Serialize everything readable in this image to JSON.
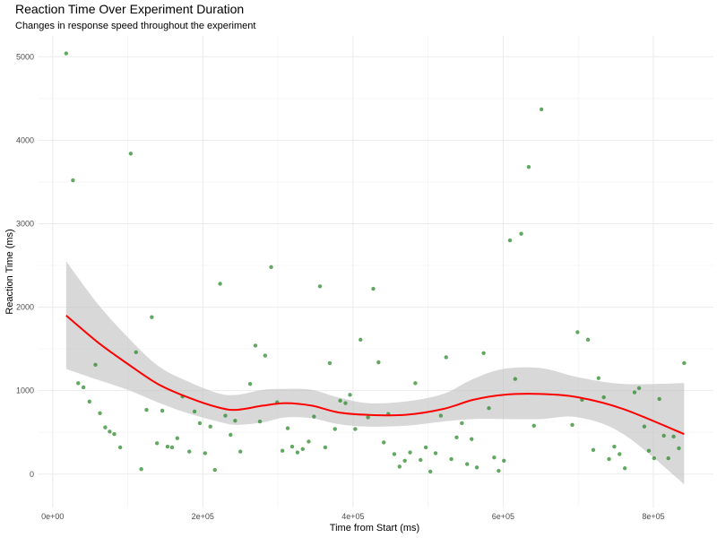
{
  "chart_data": {
    "type": "scatter",
    "title": "Reaction Time Over Experiment Duration",
    "subtitle": "Changes in response speed throughout the experiment",
    "xlabel": "Time from Start (ms)",
    "ylabel": "Reaction Time (ms)",
    "xlim": [
      -20000,
      880000
    ],
    "ylim": [
      -400,
      5250
    ],
    "x_ticks": [
      0,
      200000,
      400000,
      600000,
      800000
    ],
    "x_tick_labels": [
      "0e+00",
      "2e+05",
      "4e+05",
      "6e+05",
      "8e+05"
    ],
    "y_ticks": [
      0,
      1000,
      2000,
      3000,
      4000,
      5000
    ],
    "y_tick_labels": [
      "0",
      "1000",
      "2000",
      "3000",
      "4000",
      "5000"
    ],
    "grid": true,
    "legend": "none",
    "colors": {
      "points": "#2e8b2e",
      "smooth_line": "#ff0000",
      "confidence_band": "#bebebe"
    },
    "points": [
      {
        "x": 18000,
        "y": 5040
      },
      {
        "x": 27000,
        "y": 3520
      },
      {
        "x": 34000,
        "y": 1090
      },
      {
        "x": 41000,
        "y": 1040
      },
      {
        "x": 49000,
        "y": 870
      },
      {
        "x": 57000,
        "y": 1310
      },
      {
        "x": 63000,
        "y": 730
      },
      {
        "x": 70000,
        "y": 560
      },
      {
        "x": 76000,
        "y": 510
      },
      {
        "x": 82000,
        "y": 480
      },
      {
        "x": 90000,
        "y": 320
      },
      {
        "x": 104000,
        "y": 3840
      },
      {
        "x": 111000,
        "y": 1460
      },
      {
        "x": 118000,
        "y": 60
      },
      {
        "x": 125000,
        "y": 770
      },
      {
        "x": 132000,
        "y": 1880
      },
      {
        "x": 139000,
        "y": 370
      },
      {
        "x": 146000,
        "y": 760
      },
      {
        "x": 153000,
        "y": 330
      },
      {
        "x": 159000,
        "y": 320
      },
      {
        "x": 166000,
        "y": 430
      },
      {
        "x": 173000,
        "y": 930
      },
      {
        "x": 182000,
        "y": 270
      },
      {
        "x": 189000,
        "y": 750
      },
      {
        "x": 196000,
        "y": 610
      },
      {
        "x": 203000,
        "y": 250
      },
      {
        "x": 210000,
        "y": 570
      },
      {
        "x": 216000,
        "y": 50
      },
      {
        "x": 223000,
        "y": 2280
      },
      {
        "x": 230000,
        "y": 700
      },
      {
        "x": 237000,
        "y": 470
      },
      {
        "x": 243000,
        "y": 640
      },
      {
        "x": 250000,
        "y": 270
      },
      {
        "x": 263000,
        "y": 1080
      },
      {
        "x": 270000,
        "y": 1540
      },
      {
        "x": 276000,
        "y": 630
      },
      {
        "x": 283000,
        "y": 1420
      },
      {
        "x": 291000,
        "y": 2480
      },
      {
        "x": 299000,
        "y": 860
      },
      {
        "x": 306000,
        "y": 280
      },
      {
        "x": 313000,
        "y": 550
      },
      {
        "x": 319000,
        "y": 330
      },
      {
        "x": 326000,
        "y": 260
      },
      {
        "x": 333000,
        "y": 300
      },
      {
        "x": 341000,
        "y": 390
      },
      {
        "x": 348000,
        "y": 690
      },
      {
        "x": 356000,
        "y": 2250
      },
      {
        "x": 363000,
        "y": 320
      },
      {
        "x": 369000,
        "y": 1330
      },
      {
        "x": 376000,
        "y": 540
      },
      {
        "x": 383000,
        "y": 880
      },
      {
        "x": 390000,
        "y": 850
      },
      {
        "x": 396000,
        "y": 950
      },
      {
        "x": 403000,
        "y": 540
      },
      {
        "x": 410000,
        "y": 1610
      },
      {
        "x": 420000,
        "y": 680
      },
      {
        "x": 427000,
        "y": 2220
      },
      {
        "x": 434000,
        "y": 1340
      },
      {
        "x": 441000,
        "y": 380
      },
      {
        "x": 447000,
        "y": 720
      },
      {
        "x": 455000,
        "y": 240
      },
      {
        "x": 462000,
        "y": 90
      },
      {
        "x": 469000,
        "y": 160
      },
      {
        "x": 476000,
        "y": 260
      },
      {
        "x": 483000,
        "y": 1090
      },
      {
        "x": 490000,
        "y": 170
      },
      {
        "x": 497000,
        "y": 320
      },
      {
        "x": 503000,
        "y": 30
      },
      {
        "x": 510000,
        "y": 250
      },
      {
        "x": 517000,
        "y": 700
      },
      {
        "x": 524000,
        "y": 1400
      },
      {
        "x": 531000,
        "y": 180
      },
      {
        "x": 538000,
        "y": 440
      },
      {
        "x": 545000,
        "y": 610
      },
      {
        "x": 552000,
        "y": 120
      },
      {
        "x": 558000,
        "y": 420
      },
      {
        "x": 565000,
        "y": 80
      },
      {
        "x": 574000,
        "y": 1450
      },
      {
        "x": 581000,
        "y": 790
      },
      {
        "x": 588000,
        "y": 200
      },
      {
        "x": 594000,
        "y": 40
      },
      {
        "x": 601000,
        "y": 160
      },
      {
        "x": 609000,
        "y": 2800
      },
      {
        "x": 616000,
        "y": 1140
      },
      {
        "x": 624000,
        "y": 2880
      },
      {
        "x": 634000,
        "y": 3680
      },
      {
        "x": 641000,
        "y": 580
      },
      {
        "x": 651000,
        "y": 4370
      },
      {
        "x": 692000,
        "y": 590
      },
      {
        "x": 699000,
        "y": 1700
      },
      {
        "x": 705000,
        "y": 890
      },
      {
        "x": 713000,
        "y": 1610
      },
      {
        "x": 720000,
        "y": 290
      },
      {
        "x": 727000,
        "y": 1150
      },
      {
        "x": 734000,
        "y": 920
      },
      {
        "x": 741000,
        "y": 180
      },
      {
        "x": 748000,
        "y": 330
      },
      {
        "x": 755000,
        "y": 240
      },
      {
        "x": 762000,
        "y": 70
      },
      {
        "x": 775000,
        "y": 980
      },
      {
        "x": 781000,
        "y": 1030
      },
      {
        "x": 788000,
        "y": 570
      },
      {
        "x": 794000,
        "y": 280
      },
      {
        "x": 801000,
        "y": 190
      },
      {
        "x": 808000,
        "y": 900
      },
      {
        "x": 814000,
        "y": 460
      },
      {
        "x": 820000,
        "y": 190
      },
      {
        "x": 827000,
        "y": 450
      },
      {
        "x": 834000,
        "y": 310
      },
      {
        "x": 841000,
        "y": 1330
      }
    ],
    "smooth": [
      {
        "x": 18000,
        "y": 1900,
        "lo": 1260,
        "hi": 2550
      },
      {
        "x": 60000,
        "y": 1580,
        "lo": 1130,
        "hi": 2040
      },
      {
        "x": 100000,
        "y": 1320,
        "lo": 1010,
        "hi": 1640
      },
      {
        "x": 140000,
        "y": 1080,
        "lo": 860,
        "hi": 1300
      },
      {
        "x": 180000,
        "y": 920,
        "lo": 730,
        "hi": 1110
      },
      {
        "x": 220000,
        "y": 800,
        "lo": 630,
        "hi": 970
      },
      {
        "x": 245000,
        "y": 770,
        "lo": 590,
        "hi": 950
      },
      {
        "x": 280000,
        "y": 820,
        "lo": 620,
        "hi": 1010
      },
      {
        "x": 310000,
        "y": 850,
        "lo": 680,
        "hi": 1020
      },
      {
        "x": 345000,
        "y": 820,
        "lo": 670,
        "hi": 1010
      },
      {
        "x": 380000,
        "y": 740,
        "lo": 600,
        "hi": 920
      },
      {
        "x": 420000,
        "y": 710,
        "lo": 570,
        "hi": 850
      },
      {
        "x": 470000,
        "y": 710,
        "lo": 580,
        "hi": 870
      },
      {
        "x": 520000,
        "y": 780,
        "lo": 630,
        "hi": 960
      },
      {
        "x": 560000,
        "y": 890,
        "lo": 660,
        "hi": 1140
      },
      {
        "x": 600000,
        "y": 950,
        "lo": 660,
        "hi": 1260
      },
      {
        "x": 650000,
        "y": 960,
        "lo": 660,
        "hi": 1270
      },
      {
        "x": 700000,
        "y": 920,
        "lo": 680,
        "hi": 1160
      },
      {
        "x": 760000,
        "y": 780,
        "lo": 480,
        "hi": 1080
      },
      {
        "x": 841000,
        "y": 480,
        "lo": -120,
        "hi": 1090
      }
    ]
  }
}
